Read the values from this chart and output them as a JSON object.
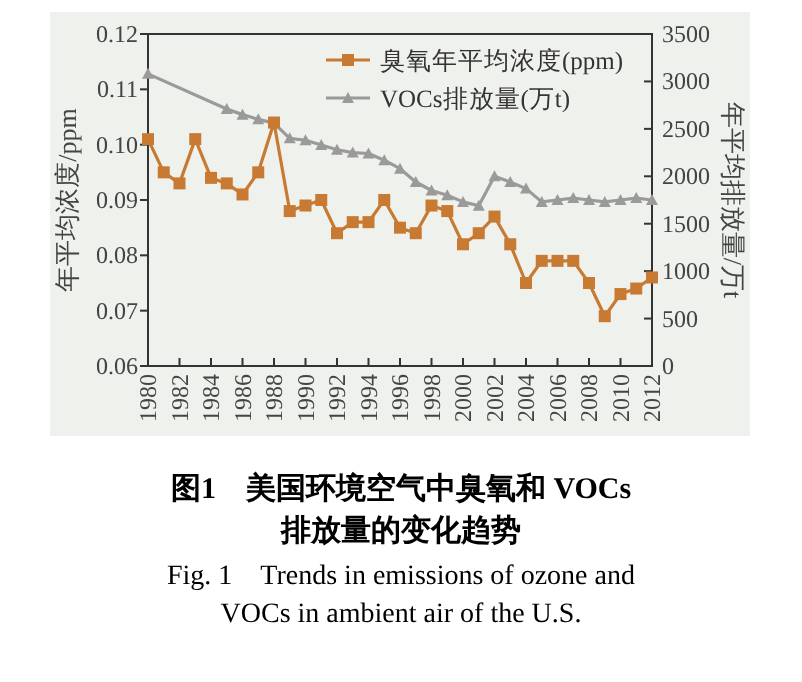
{
  "chart_data": {
    "type": "line",
    "title": "图1　美国环境空气中臭氧和 VOCs 排放量的变化趋势",
    "subtitle": "Fig. 1　Trends in emissions of ozone and VOCs in ambient air of the U.S.",
    "ylabel": "年平均浓度/ppm",
    "y2label": "年平均排放量/万t",
    "x": [
      1980,
      1981,
      1982,
      1983,
      1984,
      1985,
      1986,
      1987,
      1988,
      1989,
      1990,
      1991,
      1992,
      1993,
      1994,
      1995,
      1996,
      1997,
      1998,
      1999,
      2000,
      2001,
      2002,
      2003,
      2004,
      2005,
      2006,
      2007,
      2008,
      2009,
      2010,
      2011,
      2012
    ],
    "xlim": [
      1980,
      2012
    ],
    "xticks": [
      1980,
      1982,
      1984,
      1986,
      1988,
      1990,
      1992,
      1994,
      1996,
      1998,
      2000,
      2002,
      2004,
      2006,
      2008,
      2010,
      2012
    ],
    "ylim": [
      0.06,
      0.12
    ],
    "yticks": [
      0.06,
      0.07,
      0.08,
      0.09,
      {
        "value": 0.1,
        "label": "0.10"
      },
      0.11,
      0.12
    ],
    "y2lim": [
      0,
      3500
    ],
    "y2ticks": [
      0,
      500,
      1000,
      1500,
      2000,
      2500,
      3000,
      3500
    ],
    "legend": "top right",
    "grid": false,
    "series": [
      {
        "name": "臭氧年平均浓度(ppm)",
        "color": "#c87a32",
        "marker": "square",
        "values": [
          0.101,
          0.095,
          0.093,
          0.101,
          0.094,
          0.093,
          0.091,
          0.095,
          0.104,
          0.088,
          0.089,
          0.09,
          0.084,
          0.086,
          0.086,
          0.09,
          0.085,
          0.084,
          0.089,
          0.088,
          0.082,
          0.084,
          0.087,
          0.082,
          0.075,
          0.079,
          0.079,
          0.079,
          0.075,
          0.069,
          0.073,
          0.074,
          0.076
        ]
      },
      {
        "name": "VOCs排放量(万t)",
        "color": "#9a9a9a",
        "marker": "triangle",
        "axis": "y2",
        "x": [
          1980,
          1985,
          1986,
          1987,
          1988,
          1989,
          1990,
          1991,
          1992,
          1993,
          1994,
          1995,
          1996,
          1997,
          1998,
          1999,
          2000,
          2001,
          2002,
          2003,
          2004,
          2005,
          2006,
          2007,
          2008,
          2009,
          2010,
          2011,
          2012
        ],
        "values": [
          3080,
          2710,
          2650,
          2600,
          2560,
          2400,
          2380,
          2330,
          2280,
          2250,
          2240,
          2170,
          2080,
          1940,
          1850,
          1800,
          1730,
          1690,
          2000,
          1940,
          1870,
          1730,
          1750,
          1770,
          1750,
          1730,
          1750,
          1770,
          1750
        ]
      }
    ]
  }
}
